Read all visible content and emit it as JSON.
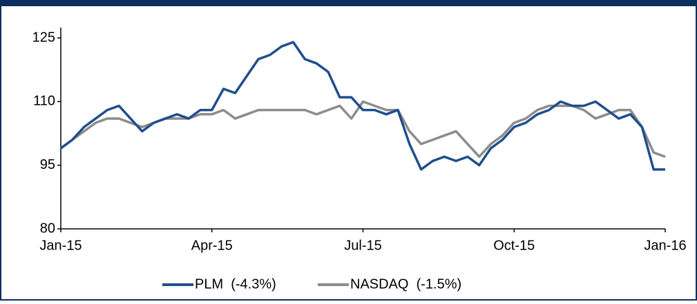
{
  "chart_data": {
    "type": "line",
    "categories": [
      "Jan-15",
      null,
      null,
      null,
      null,
      null,
      null,
      null,
      null,
      null,
      null,
      null,
      null,
      "Apr-15",
      null,
      null,
      null,
      null,
      null,
      null,
      null,
      null,
      null,
      null,
      null,
      null,
      "Jul-15",
      null,
      null,
      null,
      null,
      null,
      null,
      null,
      null,
      null,
      null,
      null,
      null,
      "Oct-15",
      null,
      null,
      null,
      null,
      null,
      null,
      null,
      null,
      null,
      null,
      null,
      null,
      "Jan-16"
    ],
    "series": [
      {
        "name": "PLM  (-4.3%)",
        "color": "#1f4e8c",
        "values": [
          99,
          101,
          104,
          106,
          108,
          109,
          106,
          103,
          105,
          106,
          107,
          106,
          108,
          108,
          113,
          112,
          116,
          120,
          121,
          123,
          124,
          120,
          119,
          117,
          111,
          111,
          108,
          108,
          107,
          108,
          100,
          94,
          96,
          97,
          96,
          97,
          95,
          99,
          101,
          104,
          105,
          107,
          108,
          110,
          109,
          109,
          110,
          108,
          106,
          107,
          104,
          94,
          94
        ]
      },
      {
        "name": "NASDAQ  (-1.5%)",
        "color": "#8c8c8c",
        "values": [
          99,
          101,
          103,
          105,
          106,
          106,
          105,
          104,
          105,
          106,
          106,
          106,
          107,
          107,
          108,
          106,
          107,
          108,
          108,
          108,
          108,
          108,
          107,
          108,
          109,
          106,
          110,
          109,
          108,
          108,
          103,
          100,
          101,
          102,
          103,
          100,
          97,
          100,
          102,
          105,
          106,
          108,
          109,
          109,
          109,
          108,
          106,
          107,
          108,
          108,
          104,
          98,
          97
        ]
      }
    ],
    "ylim": [
      80,
      125
    ],
    "yticks": [
      80,
      95,
      110,
      125
    ],
    "grid": false,
    "legend": "bottom"
  }
}
